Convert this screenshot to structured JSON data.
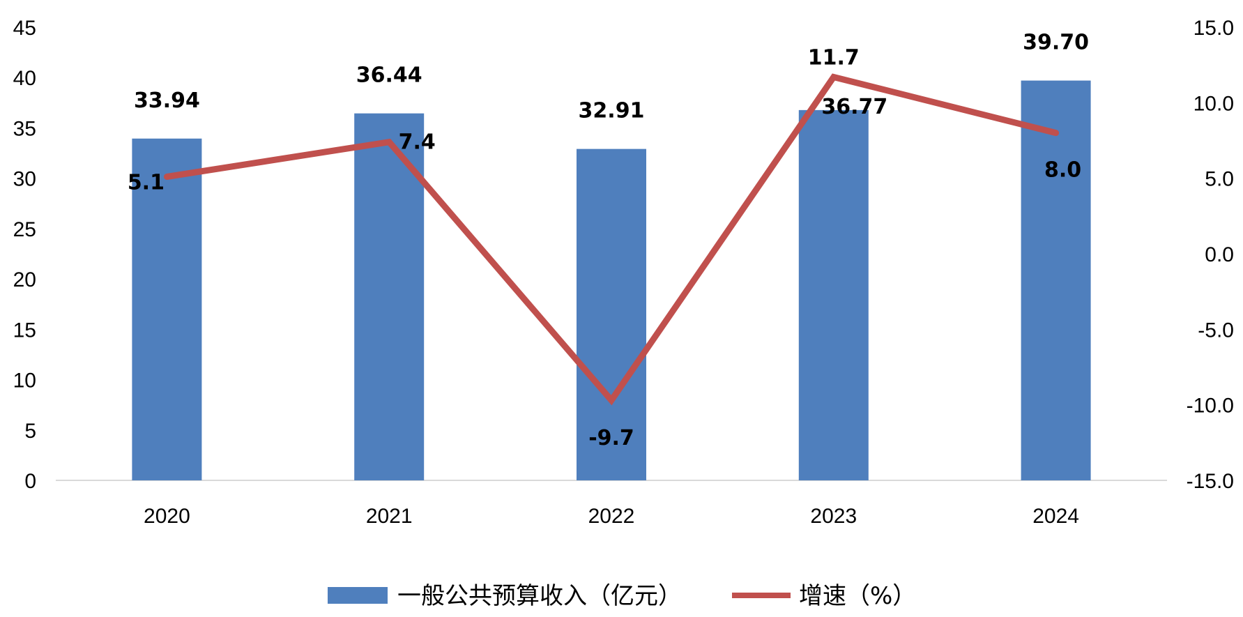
{
  "chart_data": {
    "type": "bar",
    "categories": [
      "2020",
      "2021",
      "2022",
      "2023",
      "2024"
    ],
    "series": [
      {
        "name": "一般公共预算收入（亿元）",
        "type": "bar",
        "axis": "left",
        "values": [
          33.94,
          36.44,
          32.91,
          36.77,
          39.7
        ],
        "labels": [
          "33.94",
          "36.44",
          "32.91",
          "36.77",
          "39.70"
        ],
        "color": "#4F7FBD"
      },
      {
        "name": "增速（%）",
        "type": "line",
        "axis": "right",
        "values": [
          5.1,
          7.4,
          -9.7,
          11.7,
          8.0
        ],
        "labels": [
          "5.1",
          "7.4",
          "-9.7",
          "11.7",
          "8.0"
        ],
        "color": "#C0504D"
      }
    ],
    "y_left": {
      "ylim": [
        0,
        45
      ],
      "ticks": [
        0,
        5,
        10,
        15,
        20,
        25,
        30,
        35,
        40,
        45
      ],
      "tick_labels": [
        "0",
        "5",
        "10",
        "15",
        "20",
        "25",
        "30",
        "35",
        "40",
        "45"
      ]
    },
    "y_right": {
      "ylim": [
        -15,
        15
      ],
      "ticks": [
        -15,
        -10,
        -5,
        0,
        5,
        10,
        15
      ],
      "tick_labels": [
        "-15.0",
        "-10.0",
        "-5.0",
        "0.0",
        "5.0",
        "10.0",
        "15.0"
      ]
    },
    "title": "",
    "xlabel": "",
    "ylabel": "",
    "grid": false,
    "legend_position": "bottom",
    "axis_color": "#D9D9D9"
  }
}
